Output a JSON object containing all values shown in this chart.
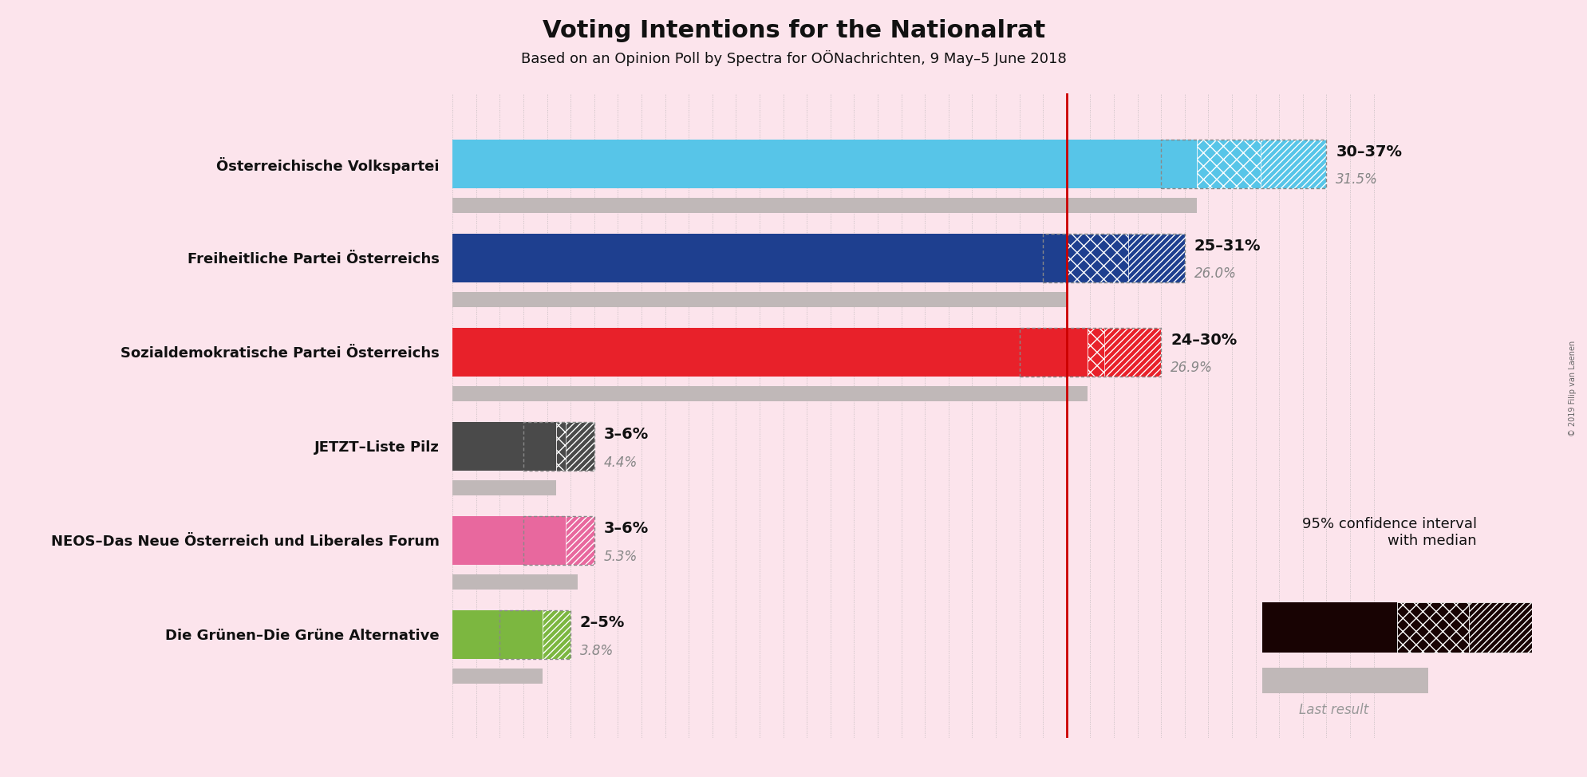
{
  "title": "Voting Intentions for the Nationalrat",
  "subtitle": "Based on an Opinion Poll by Spectra for OÖNachrichten, 9 May–5 June 2018",
  "copyright": "© 2019 Filip van Laenen",
  "background_color": "#fce4ec",
  "parties": [
    {
      "name": "Österreichische Volkspartei",
      "ci_low": 30,
      "ci_high": 37,
      "median": 31.5,
      "last_result": 31.5,
      "color": "#57c5e8",
      "label": "30–37%",
      "median_label": "31.5%"
    },
    {
      "name": "Freiheitliche Partei Österreichs",
      "ci_low": 25,
      "ci_high": 31,
      "median": 26.0,
      "last_result": 26.0,
      "color": "#1e3f8f",
      "label": "25–31%",
      "median_label": "26.0%"
    },
    {
      "name": "Sozialdemokratische Partei Österreichs",
      "ci_low": 24,
      "ci_high": 30,
      "median": 26.9,
      "last_result": 26.9,
      "color": "#e8212a",
      "label": "24–30%",
      "median_label": "26.9%"
    },
    {
      "name": "JETZT–Liste Pilz",
      "ci_low": 3,
      "ci_high": 6,
      "median": 4.4,
      "last_result": 4.4,
      "color": "#4a4a4a",
      "label": "3–6%",
      "median_label": "4.4%"
    },
    {
      "name": "NEOS–Das Neue Österreich und Liberales Forum",
      "ci_low": 3,
      "ci_high": 6,
      "median": 5.3,
      "last_result": 5.3,
      "color": "#e8689e",
      "label": "3–6%",
      "median_label": "5.3%"
    },
    {
      "name": "Die Grünen–Die Grüne Alternative",
      "ci_low": 2,
      "ci_high": 5,
      "median": 3.8,
      "last_result": 3.8,
      "color": "#7cb740",
      "label": "2–5%",
      "median_label": "3.8%"
    }
  ],
  "xlim_max": 40,
  "red_line_x": 26.0,
  "legend_text_line1": "95% confidence interval",
  "legend_text_line2": "with median",
  "last_result_text": "Last result"
}
